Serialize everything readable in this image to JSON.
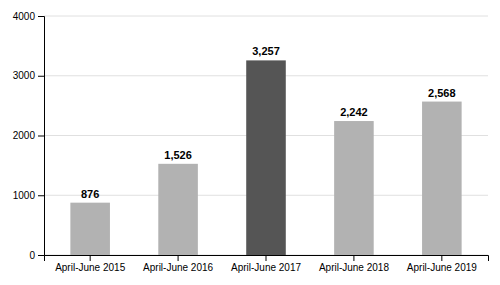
{
  "chart_data": {
    "type": "bar",
    "categories": [
      "April-June 2015",
      "April-June 2016",
      "April-June 2017",
      "April-June 2018",
      "April-June 2019"
    ],
    "values": [
      876,
      1526,
      3257,
      2242,
      2568
    ],
    "value_labels": [
      "876",
      "1,526",
      "3,257",
      "2,242",
      "2,568"
    ],
    "data_labels": true,
    "colors": [
      "#b2b2b2",
      "#b2b2b2",
      "#555555",
      "#b2b2b2",
      "#b2b2b2"
    ],
    "ylim": [
      0,
      4000
    ],
    "yticks": [
      0,
      1000,
      2000,
      3000,
      4000
    ],
    "grid": true
  }
}
